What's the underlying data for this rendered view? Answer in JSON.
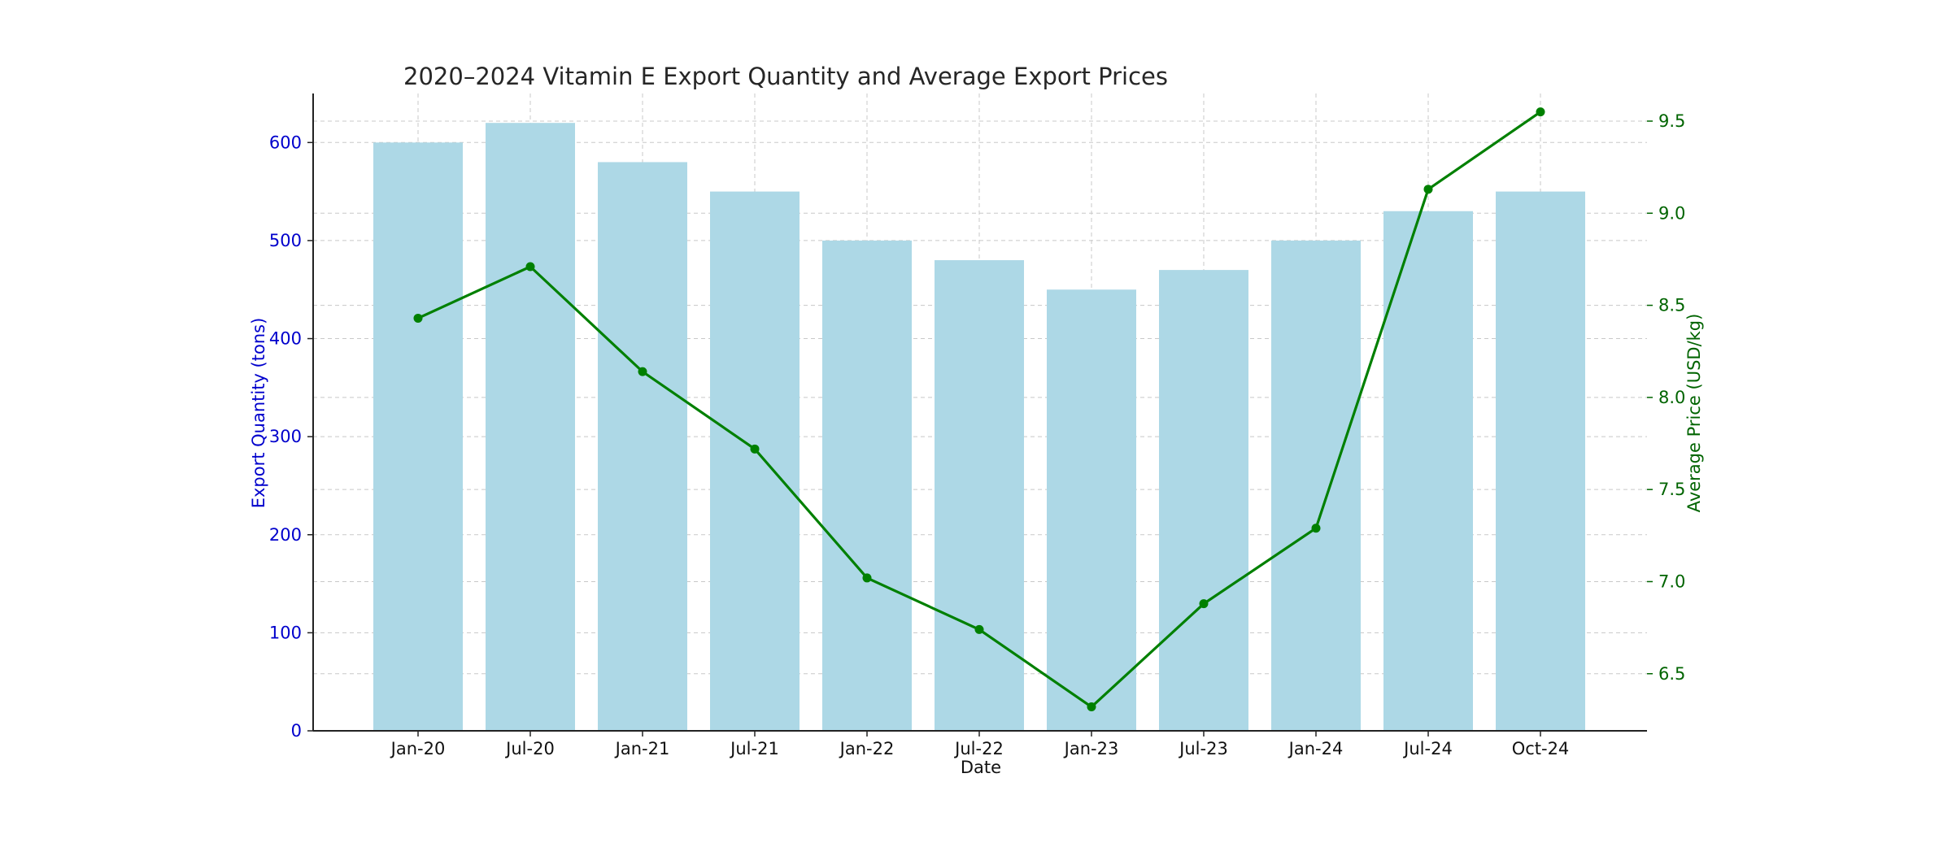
{
  "chart_data": {
    "type": "bar",
    "title": "2020–2024 Vitamin E Export Quantity and Average Export Prices",
    "xlabel": "Date",
    "categories": [
      "Jan-20",
      "Jul-20",
      "Jan-21",
      "Jul-21",
      "Jan-22",
      "Jul-22",
      "Jan-23",
      "Jul-23",
      "Jan-24",
      "Jul-24",
      "Oct-24"
    ],
    "grid": true,
    "series": [
      {
        "type": "bar",
        "axis": "left",
        "color": "#add8e6",
        "values": [
          600,
          620,
          580,
          550,
          500,
          480,
          450,
          470,
          500,
          530,
          550
        ]
      },
      {
        "type": "line",
        "axis": "right",
        "color": "#008000",
        "values": [
          8.43,
          8.71,
          8.14,
          7.72,
          7.02,
          6.74,
          6.32,
          6.88,
          7.29,
          9.13,
          9.55
        ]
      }
    ],
    "left_axis": {
      "label": "Export Quantity (tons)",
      "color": "#0000cc",
      "ylim": [
        0,
        650
      ],
      "ticks": [
        "0",
        "100",
        "200",
        "300",
        "400",
        "500",
        "600"
      ]
    },
    "right_axis": {
      "label": "Average Price (USD/kg)",
      "color": "#006400",
      "ylim": [
        6.19,
        9.65
      ],
      "ticks": [
        "6.5",
        "7.0",
        "7.5",
        "8.0",
        "8.5",
        "9.0",
        "9.5"
      ]
    }
  }
}
